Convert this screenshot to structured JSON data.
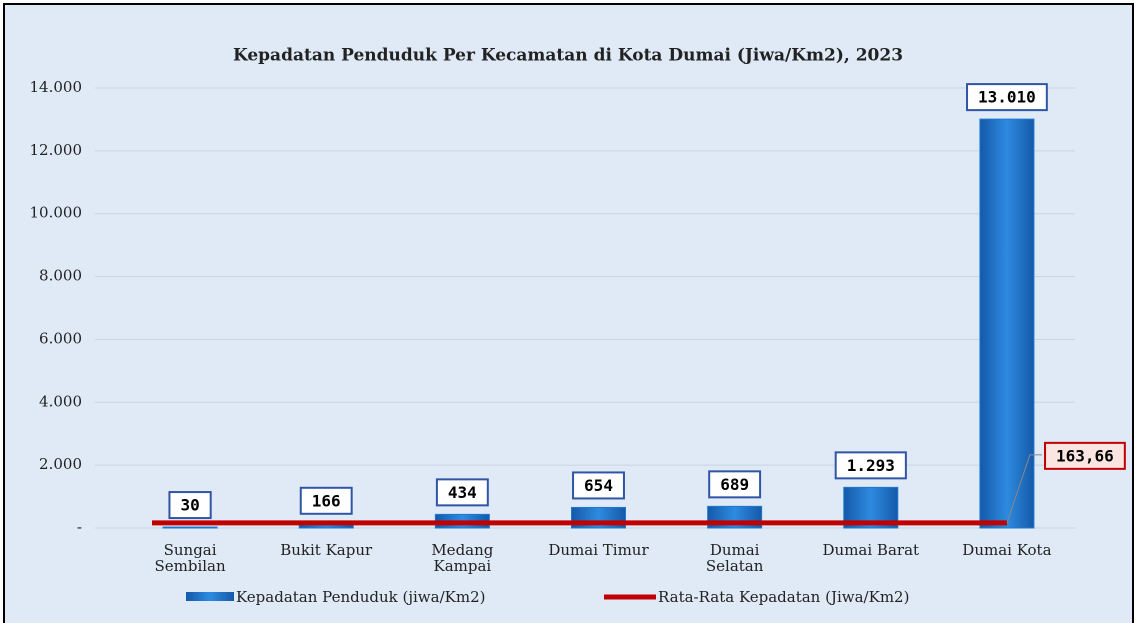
{
  "chart_data": {
    "type": "bar",
    "title": "Kepadatan Penduduk Per Kecamatan di Kota Dumai (Jiwa/Km2), 2023",
    "categories": [
      [
        "Sungai",
        "Sembilan"
      ],
      [
        "Bukit Kapur"
      ],
      [
        "Medang",
        "Kampai"
      ],
      [
        "Dumai Timur"
      ],
      [
        "Dumai",
        "Selatan"
      ],
      [
        "Dumai Barat"
      ],
      [
        "Dumai Kota"
      ]
    ],
    "series": [
      {
        "name": "Kepadatan Penduduk (jiwa/Km2)",
        "type": "bar",
        "color": "#1f78d1",
        "values": [
          30,
          166,
          434,
          654,
          689,
          1293,
          13010
        ],
        "value_labels": [
          "30",
          "166",
          "434",
          "654",
          "689",
          "1.293",
          "13.010"
        ]
      },
      {
        "name": "Rata-Rata Kepadatan (Jiwa/Km2)",
        "type": "line",
        "color": "#c00000",
        "values": [
          163.66,
          163.66,
          163.66,
          163.66,
          163.66,
          163.66,
          163.66
        ],
        "value_labels": [
          null,
          null,
          null,
          null,
          null,
          null,
          "163,66"
        ]
      }
    ],
    "ylim": [
      0,
      14000
    ],
    "yticks": [
      {
        "value": 0,
        "label": "-"
      },
      {
        "value": 2000,
        "label": "2.000"
      },
      {
        "value": 4000,
        "label": "4.000"
      },
      {
        "value": 6000,
        "label": "6.000"
      },
      {
        "value": 8000,
        "label": "8.000"
      },
      {
        "value": 10000,
        "label": "10.000"
      },
      {
        "value": 12000,
        "label": "12.000"
      },
      {
        "value": 14000,
        "label": "14.000"
      }
    ],
    "grid": true,
    "legend": "bottom"
  }
}
